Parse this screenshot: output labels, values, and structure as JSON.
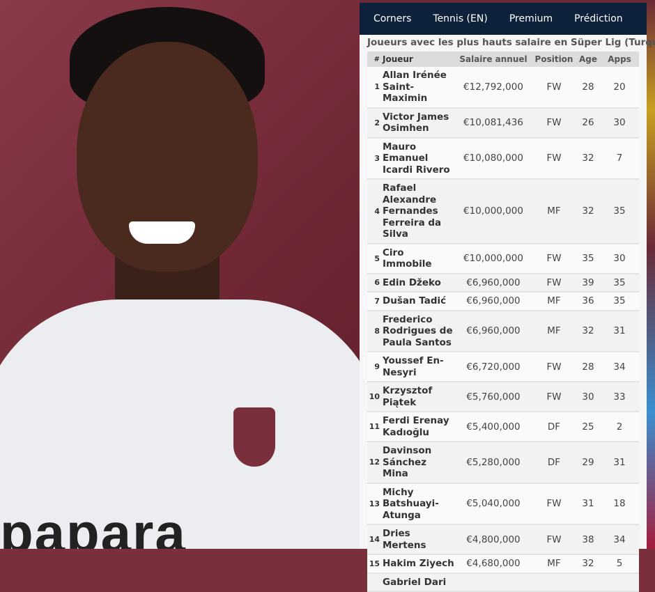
{
  "nav": {
    "items": [
      "Corners",
      "Tennis (EN)",
      "Premium",
      "Prédiction"
    ]
  },
  "table": {
    "title": "Joueurs avec les plus hauts salaire en Süper Lig (Turquie)",
    "headers": [
      "#",
      "Joueur",
      "Salaire annuel",
      "Position",
      "Age",
      "Apps"
    ],
    "rows": [
      [
        "1",
        "Allan Irénée Saint-Maximin",
        "€12,792,000",
        "FW",
        "28",
        "20"
      ],
      [
        "2",
        "Victor James Osimhen",
        "€10,081,436",
        "FW",
        "26",
        "30"
      ],
      [
        "3",
        "Mauro Emanuel Icardi Rivero",
        "€10,080,000",
        "FW",
        "32",
        "7"
      ],
      [
        "4",
        "Rafael Alexandre Fernandes Ferreira da Silva",
        "€10,000,000",
        "MF",
        "32",
        "35"
      ],
      [
        "5",
        "Ciro Immobile",
        "€10,000,000",
        "FW",
        "35",
        "30"
      ],
      [
        "6",
        "Edin Džeko",
        "€6,960,000",
        "FW",
        "39",
        "35"
      ],
      [
        "7",
        "Dušan Tadić",
        "€6,960,000",
        "MF",
        "36",
        "35"
      ],
      [
        "8",
        "Frederico Rodrigues de Paula Santos",
        "€6,960,000",
        "MF",
        "32",
        "31"
      ],
      [
        "9",
        "Youssef En-Nesyri",
        "€6,720,000",
        "FW",
        "28",
        "34"
      ],
      [
        "10",
        "Krzysztof Piątek",
        "€5,760,000",
        "FW",
        "30",
        "33"
      ],
      [
        "11",
        "Ferdi Erenay Kadıoğlu",
        "€5,400,000",
        "DF",
        "25",
        "2"
      ],
      [
        "12",
        "Davinson Sánchez Mina",
        "€5,280,000",
        "DF",
        "29",
        "31"
      ],
      [
        "13",
        "Michy Batshuayi-Atunga",
        "€5,040,000",
        "FW",
        "31",
        "18"
      ],
      [
        "14",
        "Dries Mertens",
        "€4,800,000",
        "FW",
        "38",
        "34"
      ],
      [
        "15",
        "Hakim Ziyech",
        "€4,680,000",
        "MF",
        "32",
        "5"
      ],
      [
        "",
        "Gabriel Dari",
        "",
        "",
        "",
        ""
      ]
    ]
  },
  "photo": {
    "sponsor_text": "papara"
  }
}
